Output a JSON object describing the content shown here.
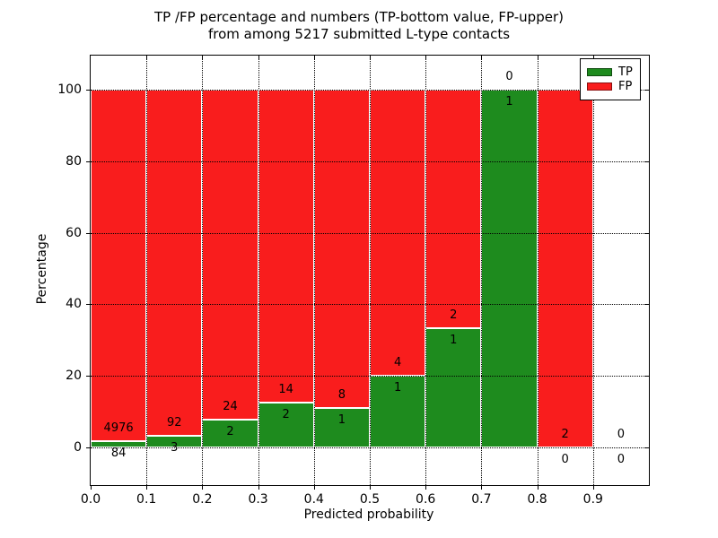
{
  "figure": {
    "title_line1": "TP /FP percentage and numbers (TP-bottom value, FP-upper)",
    "title_line2": "from among 5217 submitted L-type contacts"
  },
  "chart_data": {
    "type": "bar",
    "subtype": "stacked-percentage-histogram",
    "title": "TP /FP percentage and numbers (TP-bottom value, FP-upper) from among 5217 submitted L-type contacts",
    "xlabel": "Predicted probability",
    "ylabel": "Percentage",
    "total_contacts": 5217,
    "categories": [
      "0.0-0.1",
      "0.1-0.2",
      "0.2-0.3",
      "0.3-0.4",
      "0.4-0.5",
      "0.5-0.6",
      "0.6-0.7",
      "0.7-0.8",
      "0.8-0.9",
      "0.9-1.0"
    ],
    "series": [
      {
        "name": "TP",
        "color": "#1e8b1e",
        "values": [
          84,
          3,
          2,
          2,
          1,
          1,
          1,
          1,
          0,
          0
        ]
      },
      {
        "name": "FP",
        "color": "#f91d1d",
        "values": [
          4976,
          92,
          24,
          14,
          8,
          4,
          2,
          0,
          2,
          0
        ]
      }
    ],
    "tp_percent_heights": [
      1.66,
      3.16,
      7.69,
      12.5,
      11.11,
      20.0,
      33.33,
      100.0,
      0.0,
      0.0
    ],
    "annotation_rule": "FP count printed above TP/FP boundary, TP count printed below it",
    "x_tick_labels": [
      "0.0",
      "0.1",
      "0.2",
      "0.3",
      "0.4",
      "0.5",
      "0.6",
      "0.7",
      "0.8",
      "0.9"
    ],
    "y_tick_values": [
      0,
      20,
      40,
      60,
      80,
      100
    ],
    "xlim": [
      0.0,
      1.0
    ],
    "ylim": [
      -10.5,
      109.5
    ],
    "grid": {
      "visible": true,
      "style": "dotted",
      "color": "#000000",
      "above_bars": true
    },
    "legend": {
      "position": "upper right",
      "entries": [
        {
          "label": "TP",
          "color": "#1e8b1e"
        },
        {
          "label": "FP",
          "color": "#f91d1d"
        }
      ]
    }
  },
  "colors": {
    "tp_green": "#1e8b1e",
    "fp_red": "#f91d1d",
    "bar_edge": "#ffffff",
    "background": "#ffffff",
    "text": "#000000"
  }
}
